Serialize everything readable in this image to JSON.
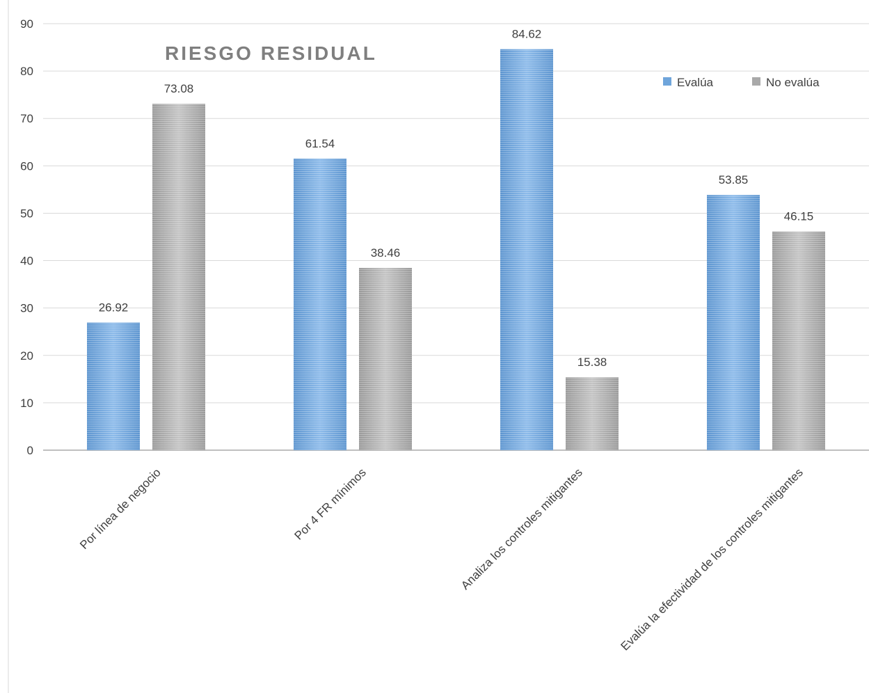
{
  "chart_data": {
    "type": "bar",
    "title": "RIESGO RESIDUAL",
    "categories": [
      "Por línea de negocio",
      "Por  4 FR mínimos",
      "Analiza los controles mitigantes",
      "Evalúa la efectividad de los controles mitigantes"
    ],
    "series": [
      {
        "name": "Evalúa",
        "values": [
          26.92,
          61.54,
          84.62,
          53.85
        ],
        "labels": [
          "26.92",
          "61.54",
          "84.62",
          "53.85"
        ],
        "color": "#6fa5db"
      },
      {
        "name": "No evalúa",
        "values": [
          73.08,
          38.46,
          15.38,
          46.15
        ],
        "labels": [
          "73.08",
          "38.46",
          "15.38",
          "46.15"
        ],
        "color": "#a9a9a9"
      }
    ],
    "ylim": [
      0,
      90
    ],
    "yticks": [
      0,
      10,
      20,
      30,
      40,
      50,
      60,
      70,
      80,
      90
    ],
    "grid": true,
    "legend": "top-right",
    "xlabel": "",
    "ylabel": ""
  }
}
